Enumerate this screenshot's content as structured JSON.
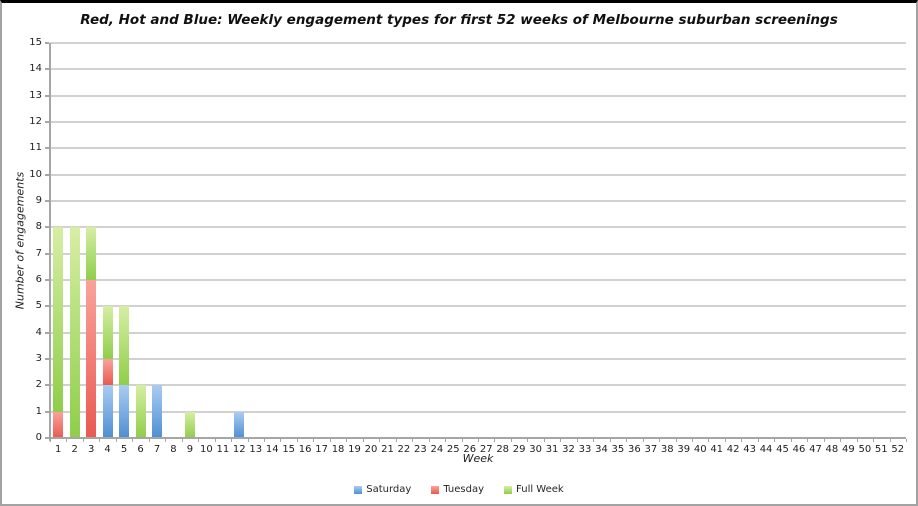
{
  "window": {
    "background": "#ffffff",
    "border_top_color": "#000000",
    "border_color": "#a3a3a3"
  },
  "chart_data": {
    "type": "bar",
    "stacked": true,
    "title": "Red, Hot and Blue: Weekly engagement types for first 52 weeks of Melbourne suburban screenings",
    "xlabel": "Week",
    "ylabel": "Number of engagements",
    "ylim": [
      0,
      15
    ],
    "ytick_step": 1,
    "yticks": [
      "0",
      "1",
      "2",
      "3",
      "4",
      "5",
      "6",
      "7",
      "8",
      "9",
      "10",
      "11",
      "12",
      "13",
      "14",
      "15"
    ],
    "grid": true,
    "grid_color": "#d1d1d1",
    "axis_color": "#a6a6a6",
    "legend_position": "bottom",
    "categories": [
      "1",
      "2",
      "3",
      "4",
      "5",
      "6",
      "7",
      "8",
      "9",
      "10",
      "11",
      "12",
      "13",
      "14",
      "15",
      "16",
      "17",
      "18",
      "19",
      "20",
      "21",
      "22",
      "23",
      "24",
      "25",
      "26",
      "27",
      "28",
      "29",
      "30",
      "31",
      "32",
      "33",
      "34",
      "35",
      "36",
      "37",
      "38",
      "39",
      "40",
      "41",
      "42",
      "43",
      "44",
      "45",
      "46",
      "47",
      "48",
      "49",
      "50",
      "51",
      "52"
    ],
    "series": [
      {
        "name": "Saturday",
        "color": "#6FA8DC",
        "gradient_top": "#AACCF2",
        "gradient_bottom": "#4E8FD3",
        "values": [
          0,
          0,
          0,
          2,
          2,
          0,
          2,
          0,
          0,
          0,
          0,
          1,
          0,
          0,
          0,
          0,
          0,
          0,
          0,
          0,
          0,
          0,
          0,
          0,
          0,
          0,
          0,
          0,
          0,
          0,
          0,
          0,
          0,
          0,
          0,
          0,
          0,
          0,
          0,
          0,
          0,
          0,
          0,
          0,
          0,
          0,
          0,
          0,
          0,
          0,
          0,
          0
        ]
      },
      {
        "name": "Tuesday",
        "color": "#E8645C",
        "gradient_top": "#F9A29C",
        "gradient_bottom": "#E95A50",
        "values": [
          1,
          0,
          6,
          1,
          0,
          0,
          0,
          0,
          0,
          0,
          0,
          0,
          0,
          0,
          0,
          0,
          0,
          0,
          0,
          0,
          0,
          0,
          0,
          0,
          0,
          0,
          0,
          0,
          0,
          0,
          0,
          0,
          0,
          0,
          0,
          0,
          0,
          0,
          0,
          0,
          0,
          0,
          0,
          0,
          0,
          0,
          0,
          0,
          0,
          0,
          0,
          0
        ]
      },
      {
        "name": "Full Week",
        "color": "#A5D86A",
        "gradient_top": "#D6EEA4",
        "gradient_bottom": "#8FCE4A",
        "values": [
          7,
          8,
          2,
          2,
          3,
          2,
          0,
          0,
          1,
          0,
          0,
          0,
          0,
          0,
          0,
          0,
          0,
          0,
          0,
          0,
          0,
          0,
          0,
          0,
          0,
          0,
          0,
          0,
          0,
          0,
          0,
          0,
          0,
          0,
          0,
          0,
          0,
          0,
          0,
          0,
          0,
          0,
          0,
          0,
          0,
          0,
          0,
          0,
          0,
          0,
          0,
          0
        ]
      }
    ]
  }
}
